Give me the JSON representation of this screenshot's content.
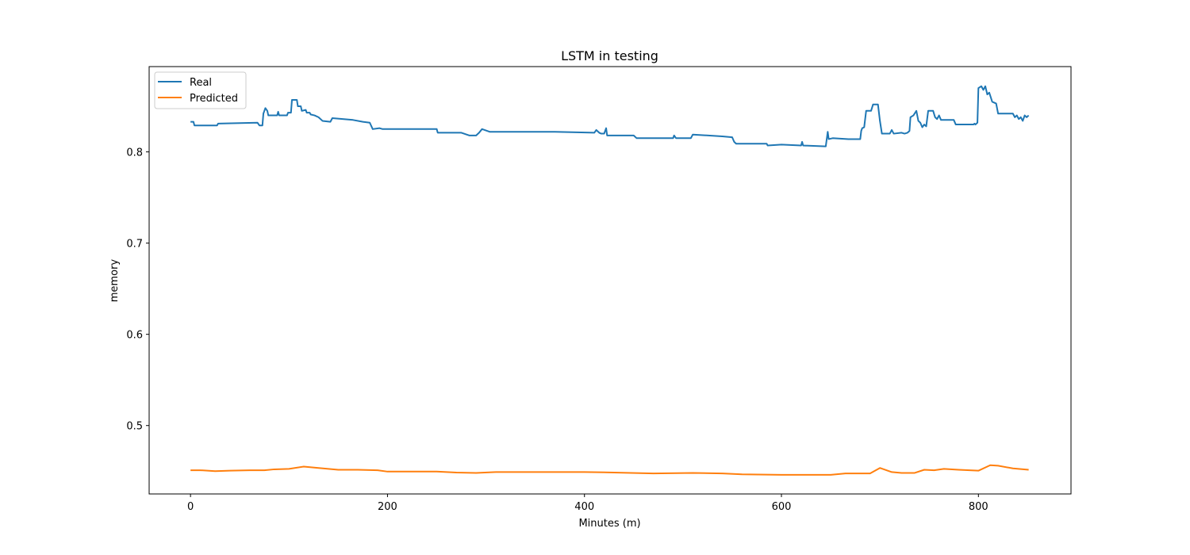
{
  "chart_data": {
    "type": "line",
    "title": "LSTM in testing",
    "xlabel": "Minutes (m)",
    "ylabel": "memory",
    "xlim": [
      -42,
      894
    ],
    "ylim": [
      0.425,
      0.8935
    ],
    "xticks": [
      0,
      200,
      400,
      600,
      800
    ],
    "yticks": [
      0.5,
      0.6,
      0.7,
      0.8
    ],
    "grid": false,
    "legend_position": "upper-left",
    "series": [
      {
        "name": "Real",
        "color": "#1f77b4",
        "points": [
          [
            0,
            0.833
          ],
          [
            3,
            0.833
          ],
          [
            4,
            0.829
          ],
          [
            27,
            0.829
          ],
          [
            28,
            0.831
          ],
          [
            68,
            0.832
          ],
          [
            70,
            0.829
          ],
          [
            73,
            0.829
          ],
          [
            74,
            0.842
          ],
          [
            75,
            0.845
          ],
          [
            76,
            0.848
          ],
          [
            78,
            0.845
          ],
          [
            79,
            0.84
          ],
          [
            88,
            0.84
          ],
          [
            89,
            0.844
          ],
          [
            90,
            0.84
          ],
          [
            98,
            0.84
          ],
          [
            99,
            0.843
          ],
          [
            102,
            0.843
          ],
          [
            103,
            0.857
          ],
          [
            108,
            0.857
          ],
          [
            109,
            0.85
          ],
          [
            112,
            0.85
          ],
          [
            113,
            0.845
          ],
          [
            117,
            0.846
          ],
          [
            118,
            0.843
          ],
          [
            121,
            0.843
          ],
          [
            122,
            0.841
          ],
          [
            126,
            0.84
          ],
          [
            130,
            0.838
          ],
          [
            134,
            0.834
          ],
          [
            142,
            0.833
          ],
          [
            144,
            0.837
          ],
          [
            165,
            0.835
          ],
          [
            175,
            0.833
          ],
          [
            182,
            0.832
          ],
          [
            185,
            0.825
          ],
          [
            192,
            0.826
          ],
          [
            195,
            0.825
          ],
          [
            250,
            0.825
          ],
          [
            251,
            0.821
          ],
          [
            275,
            0.821
          ],
          [
            283,
            0.818
          ],
          [
            290,
            0.818
          ],
          [
            293,
            0.821
          ],
          [
            296,
            0.825
          ],
          [
            304,
            0.822
          ],
          [
            370,
            0.822
          ],
          [
            410,
            0.821
          ],
          [
            412,
            0.824
          ],
          [
            415,
            0.821
          ],
          [
            417,
            0.82
          ],
          [
            420,
            0.82
          ],
          [
            422,
            0.826
          ],
          [
            423,
            0.818
          ],
          [
            450,
            0.818
          ],
          [
            453,
            0.815
          ],
          [
            490,
            0.815
          ],
          [
            491,
            0.818
          ],
          [
            493,
            0.815
          ],
          [
            508,
            0.815
          ],
          [
            510,
            0.819
          ],
          [
            540,
            0.817
          ],
          [
            550,
            0.816
          ],
          [
            552,
            0.811
          ],
          [
            554,
            0.809
          ],
          [
            585,
            0.809
          ],
          [
            586,
            0.807
          ],
          [
            600,
            0.808
          ],
          [
            620,
            0.807
          ],
          [
            621,
            0.811
          ],
          [
            622,
            0.807
          ],
          [
            645,
            0.806
          ],
          [
            647,
            0.822
          ],
          [
            648,
            0.814
          ],
          [
            652,
            0.815
          ],
          [
            668,
            0.814
          ],
          [
            677,
            0.814
          ],
          [
            680,
            0.814
          ],
          [
            681,
            0.823
          ],
          [
            682,
            0.826
          ],
          [
            684,
            0.827
          ],
          [
            686,
            0.845
          ],
          [
            691,
            0.845
          ],
          [
            693,
            0.852
          ],
          [
            698,
            0.852
          ],
          [
            700,
            0.834
          ],
          [
            702,
            0.82
          ],
          [
            710,
            0.82
          ],
          [
            712,
            0.824
          ],
          [
            714,
            0.82
          ],
          [
            722,
            0.821
          ],
          [
            725,
            0.82
          ],
          [
            728,
            0.821
          ],
          [
            730,
            0.823
          ],
          [
            731,
            0.838
          ],
          [
            734,
            0.84
          ],
          [
            737,
            0.845
          ],
          [
            739,
            0.834
          ],
          [
            741,
            0.832
          ],
          [
            743,
            0.827
          ],
          [
            745,
            0.83
          ],
          [
            747,
            0.828
          ],
          [
            749,
            0.845
          ],
          [
            754,
            0.845
          ],
          [
            756,
            0.838
          ],
          [
            758,
            0.836
          ],
          [
            760,
            0.84
          ],
          [
            762,
            0.835
          ],
          [
            775,
            0.835
          ],
          [
            777,
            0.83
          ],
          [
            795,
            0.83
          ],
          [
            796,
            0.831
          ],
          [
            797,
            0.83
          ],
          [
            799,
            0.832
          ],
          [
            800,
            0.87
          ],
          [
            803,
            0.872
          ],
          [
            805,
            0.868
          ],
          [
            807,
            0.872
          ],
          [
            809,
            0.863
          ],
          [
            811,
            0.865
          ],
          [
            814,
            0.855
          ],
          [
            816,
            0.854
          ],
          [
            818,
            0.853
          ],
          [
            820,
            0.842
          ],
          [
            835,
            0.842
          ],
          [
            837,
            0.838
          ],
          [
            839,
            0.84
          ],
          [
            841,
            0.836
          ],
          [
            843,
            0.838
          ],
          [
            845,
            0.834
          ],
          [
            847,
            0.84
          ],
          [
            849,
            0.838
          ],
          [
            851,
            0.84
          ]
        ]
      },
      {
        "name": "Predicted",
        "color": "#ff7f0e",
        "points": [
          [
            0,
            0.451
          ],
          [
            10,
            0.451
          ],
          [
            25,
            0.45
          ],
          [
            40,
            0.4505
          ],
          [
            60,
            0.451
          ],
          [
            75,
            0.451
          ],
          [
            85,
            0.452
          ],
          [
            100,
            0.4525
          ],
          [
            115,
            0.455
          ],
          [
            130,
            0.4535
          ],
          [
            150,
            0.4515
          ],
          [
            170,
            0.4515
          ],
          [
            190,
            0.451
          ],
          [
            200,
            0.4495
          ],
          [
            250,
            0.4495
          ],
          [
            270,
            0.4485
          ],
          [
            290,
            0.448
          ],
          [
            310,
            0.449
          ],
          [
            360,
            0.449
          ],
          [
            400,
            0.449
          ],
          [
            430,
            0.4485
          ],
          [
            470,
            0.4475
          ],
          [
            510,
            0.448
          ],
          [
            540,
            0.4475
          ],
          [
            560,
            0.4465
          ],
          [
            600,
            0.446
          ],
          [
            620,
            0.446
          ],
          [
            650,
            0.446
          ],
          [
            665,
            0.4475
          ],
          [
            690,
            0.4475
          ],
          [
            700,
            0.4535
          ],
          [
            712,
            0.449
          ],
          [
            722,
            0.448
          ],
          [
            735,
            0.448
          ],
          [
            745,
            0.4515
          ],
          [
            755,
            0.451
          ],
          [
            765,
            0.4525
          ],
          [
            780,
            0.4515
          ],
          [
            800,
            0.4505
          ],
          [
            812,
            0.4565
          ],
          [
            820,
            0.456
          ],
          [
            835,
            0.453
          ],
          [
            851,
            0.4515
          ]
        ]
      }
    ]
  }
}
